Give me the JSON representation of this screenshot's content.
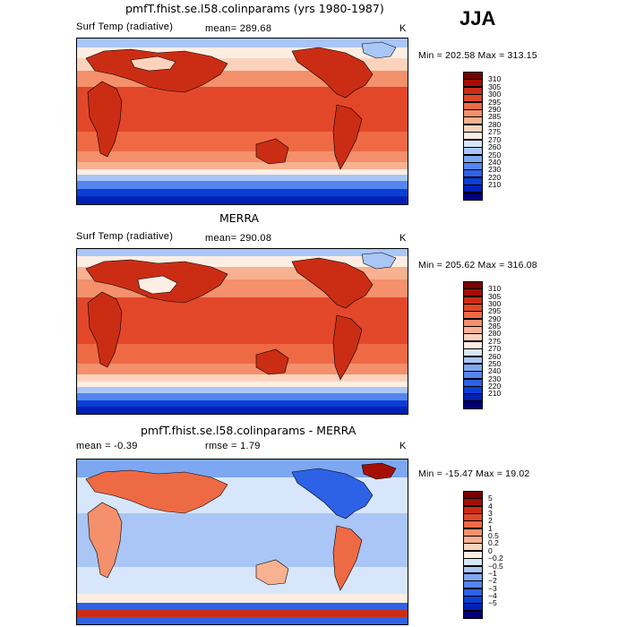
{
  "season": "JJA",
  "colors": {
    "temp_scale": [
      "#00007a",
      "#0021b5",
      "#0a3fd6",
      "#2e62e6",
      "#5585ee",
      "#7ea7f2",
      "#a9c6f7",
      "#d7e6fb",
      "#fdeee4",
      "#fbd3bd",
      "#f8b191",
      "#f4906b",
      "#ee6a45",
      "#e3472a",
      "#cb2d14",
      "#a40f05",
      "#7a0000"
    ],
    "diff_scale": [
      "#00007a",
      "#0021b5",
      "#0a3fd6",
      "#2e62e6",
      "#5585ee",
      "#7ea7f2",
      "#a9c6f7",
      "#d7e6fb",
      "#fdeee4",
      "#fbd3bd",
      "#f8b191",
      "#f4906b",
      "#ee6a45",
      "#e3472a",
      "#cb2d14",
      "#a40f05",
      "#7a0000"
    ],
    "land": "#000000"
  },
  "panels": [
    {
      "title": "pmfT.fhist.se.l58.colinparams (yrs 1980-1987)",
      "variable": "Surf Temp (radiative)",
      "mean_text": "mean=  289.68",
      "unit": "K",
      "minmax": "Min = 202.58 Max = 313.15",
      "colorbar_labels": [
        "310",
        "305",
        "300",
        "295",
        "290",
        "285",
        "280",
        "275",
        "270",
        "260",
        "250",
        "240",
        "230",
        "220",
        "210"
      ]
    },
    {
      "title": "MERRA",
      "variable": "Surf Temp (radiative)",
      "mean_text": "mean=  290.08",
      "unit": "K",
      "minmax": "Min = 205.62 Max = 316.08",
      "colorbar_labels": [
        "310",
        "305",
        "300",
        "295",
        "290",
        "285",
        "280",
        "275",
        "270",
        "260",
        "250",
        "240",
        "230",
        "220",
        "210"
      ]
    },
    {
      "title": "pmfT.fhist.se.l58.colinparams - MERRA",
      "variable": "mean =   -0.39",
      "mean_text": "rmse =    1.79",
      "unit": "K",
      "minmax": "Min = -15.47 Max =   19.02",
      "colorbar_labels": [
        "5",
        "4",
        "3",
        "2",
        "1",
        "0.5",
        "0.2",
        "0",
        "−0.2",
        "−0.5",
        "−1",
        "−2",
        "−3",
        "−4",
        "−5"
      ]
    }
  ]
}
